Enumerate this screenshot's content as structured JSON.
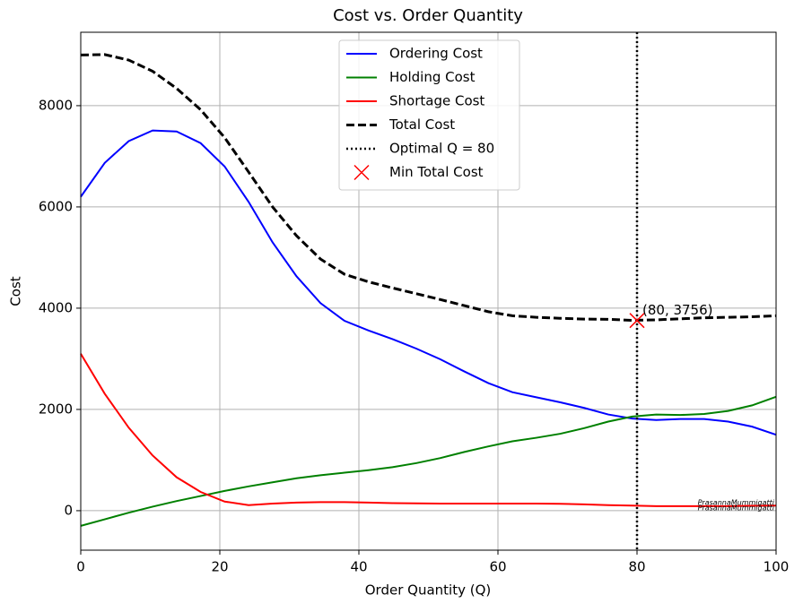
{
  "chart_data": {
    "type": "line",
    "title": "Cost vs. Order Quantity",
    "x_label": "Order Quantity (Q)",
    "y_label": "Cost",
    "x": [
      0,
      3.45,
      6.9,
      10.34,
      13.79,
      17.24,
      20.69,
      24.14,
      27.59,
      31.03,
      34.48,
      37.93,
      41.38,
      44.83,
      48.28,
      51.72,
      55.17,
      58.62,
      62.07,
      65.52,
      68.97,
      72.41,
      75.86,
      79.31,
      82.76,
      86.21,
      89.66,
      93.1,
      96.55,
      100
    ],
    "series": [
      {
        "name": "Ordering Cost",
        "color": "#0000ff",
        "dash": "solid",
        "values": [
          6200,
          6870,
          7300,
          7510,
          7490,
          7260,
          6800,
          6100,
          5300,
          4630,
          4100,
          3750,
          3560,
          3390,
          3200,
          2990,
          2750,
          2520,
          2340,
          2240,
          2140,
          2030,
          1900,
          1820,
          1790,
          1810,
          1810,
          1760,
          1660,
          1500
        ]
      },
      {
        "name": "Holding Cost",
        "color": "#008000",
        "dash": "solid",
        "values": [
          -300,
          -170,
          -40,
          80,
          190,
          290,
          390,
          480,
          560,
          640,
          700,
          750,
          800,
          860,
          940,
          1040,
          1160,
          1270,
          1370,
          1440,
          1520,
          1630,
          1760,
          1860,
          1900,
          1890,
          1910,
          1970,
          2080,
          2250
        ]
      },
      {
        "name": "Shortage Cost",
        "color": "#ff0000",
        "dash": "solid",
        "values": [
          3100,
          2310,
          1640,
          1090,
          660,
          370,
          180,
          110,
          140,
          160,
          170,
          170,
          160,
          150,
          145,
          140,
          140,
          140,
          140,
          140,
          135,
          125,
          110,
          100,
          90,
          90,
          90,
          90,
          95,
          100
        ]
      },
      {
        "name": "Total Cost",
        "color": "#000000",
        "dash": "dashed",
        "values": [
          9000,
          9010,
          8900,
          8680,
          8340,
          7920,
          7370,
          6690,
          6000,
          5430,
          4970,
          4670,
          4520,
          4400,
          4285,
          4170,
          4050,
          3930,
          3850,
          3820,
          3800,
          3785,
          3780,
          3760,
          3770,
          3790,
          3810,
          3820,
          3830,
          3850
        ]
      }
    ],
    "optimal": {
      "name": "Optimal Q = 80",
      "x": 80,
      "color": "#000000"
    },
    "min_point": {
      "name": "Min Total Cost",
      "x": 80,
      "y": 3756,
      "label": "(80, 3756)",
      "color": "#ff0000"
    },
    "watermark": [
      "PrasannaMummigatti",
      "PrasannaMummigatti"
    ],
    "xlim": [
      0,
      100
    ],
    "ylim": [
      -780,
      9450
    ],
    "xticks": [
      0,
      20,
      40,
      60,
      80,
      100
    ],
    "yticks": [
      0,
      2000,
      4000,
      6000,
      8000
    ],
    "grid": true,
    "legend": "upper center"
  }
}
